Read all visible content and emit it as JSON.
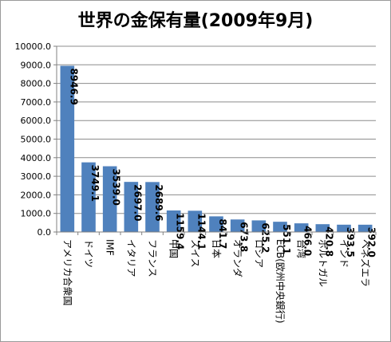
{
  "chart_data": {
    "type": "bar",
    "title": "世界の金保有量(2009年9月)",
    "xlabel": "",
    "ylabel": "",
    "ylim": [
      0,
      10000
    ],
    "ytick_labels": [
      "0.0",
      "1000.0",
      "2000.0",
      "3000.0",
      "4000.0",
      "5000.0",
      "6000.0",
      "7000.0",
      "8000.0",
      "9000.0",
      "10000.0"
    ],
    "grid": true,
    "legend": "none",
    "bar_color": "#4f81bd",
    "categories": [
      "アメリカ合衆国",
      "ドイツ",
      "IMF",
      "イタリア",
      "フランス",
      "中国",
      "スイス",
      "日本",
      "オランダ",
      "ロシア",
      "ECB(欧州中央銀行)",
      "台湾",
      "ポルトガル",
      "インド",
      "ベネズエラ"
    ],
    "values": [
      8946.9,
      3749.1,
      3539.0,
      2697.0,
      2689.6,
      1159.4,
      1144.1,
      841.7,
      673.8,
      625.2,
      551.1,
      466.0,
      420.8,
      393.5,
      392.0
    ],
    "data_labels": [
      "8946.9",
      "3749.1",
      "3539.0",
      "2697.0",
      "2689.6",
      "1159.4",
      "1144.1",
      "841.7",
      "673.8",
      "625.2",
      "551.1",
      "466.0",
      "420.8",
      "393.5",
      "392.0"
    ]
  }
}
